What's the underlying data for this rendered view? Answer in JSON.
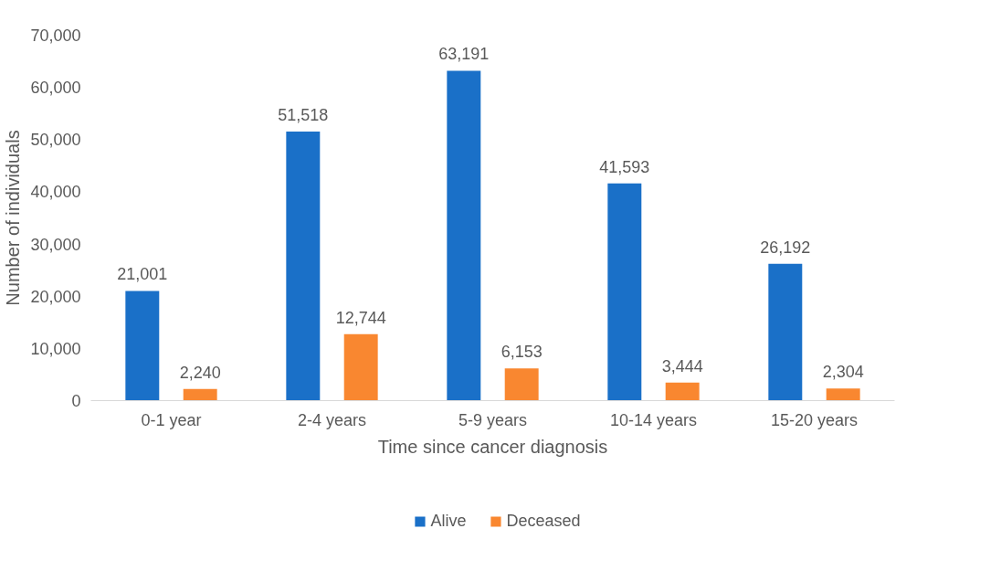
{
  "chart_data": {
    "type": "bar",
    "xlabel": "Time since cancer diagnosis",
    "ylabel": "Number of individuals",
    "categories": [
      "0-1 year",
      "2-4 years",
      "5-9 years",
      "10-14 years",
      "15-20 years"
    ],
    "series": [
      {
        "name": "Alive",
        "color": "#1a70c8",
        "values": [
          21001,
          51518,
          63191,
          41593,
          26192
        ],
        "value_labels": [
          "21,001",
          "51,518",
          "63,191",
          "41,593",
          "26,192"
        ]
      },
      {
        "name": "Deceased",
        "color": "#f98730",
        "values": [
          2240,
          12744,
          6153,
          3444,
          2304
        ],
        "value_labels": [
          "2,240",
          "12,744",
          "6,153",
          "3,444",
          "2,304"
        ]
      }
    ],
    "ylim": [
      0,
      70000
    ],
    "yticks": [
      {
        "value": 0,
        "label": "0"
      },
      {
        "value": 10000,
        "label": "10,000"
      },
      {
        "value": 20000,
        "label": "20,000"
      },
      {
        "value": 30000,
        "label": "30,000"
      },
      {
        "value": 40000,
        "label": "40,000"
      },
      {
        "value": 50000,
        "label": "50,000"
      },
      {
        "value": 60000,
        "label": "60,000"
      },
      {
        "value": 70000,
        "label": "70,000"
      }
    ],
    "legend": "bottom"
  }
}
